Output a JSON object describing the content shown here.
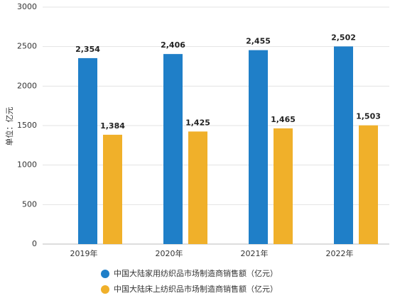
{
  "chart_data": {
    "type": "bar",
    "y_label": "单位：亿元",
    "categories": [
      "2019年",
      "2020年",
      "2021年",
      "2022年"
    ],
    "series": [
      {
        "name": "中国大陆家用纺织品市场制造商销售额（亿元）",
        "color": "#1f7fc8",
        "values": [
          2354,
          2406,
          2455,
          2502
        ],
        "value_labels": [
          "2,354",
          "2,406",
          "2,455",
          "2,502"
        ]
      },
      {
        "name": "中国大陆床上纺织品市场制造商销售额（亿元）",
        "color": "#f0b02a",
        "values": [
          1384,
          1425,
          1465,
          1503
        ],
        "value_labels": [
          "1,384",
          "1,425",
          "1,465",
          "1,503"
        ]
      }
    ],
    "ylim": [
      0,
      3000
    ],
    "yticks": [
      0,
      500,
      1000,
      1500,
      2000,
      2500,
      3000
    ],
    "grid": true
  }
}
